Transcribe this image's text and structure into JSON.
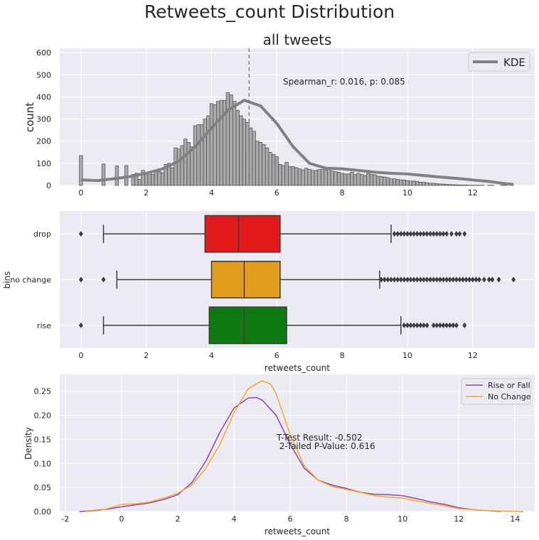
{
  "suptitle": "Retweets_count Distribution",
  "chart_data": [
    {
      "type": "bar",
      "subtype": "histogram_with_kde",
      "title": "all tweets",
      "xlabel": "",
      "ylabel": "count",
      "xlim": [
        -0.65,
        13.9
      ],
      "ylim": [
        0,
        620
      ],
      "xticks": [
        0,
        2,
        4,
        6,
        8,
        10,
        12
      ],
      "yticks": [
        0,
        100,
        200,
        300,
        400,
        500,
        600
      ],
      "grid": true,
      "legend": {
        "entries": [
          "KDE"
        ],
        "placement": "top-right"
      },
      "vline": {
        "x": 5.15,
        "style": "dashed"
      },
      "annotation": "Spearman_r: 0.016, p: 0.085",
      "bar_color": "#a9a9a9",
      "kde_color": "#808080",
      "spike_bins": [
        {
          "x": 0.0,
          "count": 135
        },
        {
          "x": 0.69,
          "count": 97
        },
        {
          "x": 1.1,
          "count": 88
        },
        {
          "x": 1.39,
          "count": 90
        }
      ],
      "bin_range": [
        1.55,
        13.25
      ],
      "bin_width": 0.1,
      "counts": [
        50,
        55,
        28,
        68,
        58,
        55,
        50,
        62,
        62,
        58,
        95,
        100,
        80,
        170,
        165,
        180,
        210,
        195,
        175,
        270,
        275,
        275,
        300,
        315,
        370,
        365,
        380,
        385,
        385,
        420,
        410,
        380,
        340,
        315,
        300,
        285,
        260,
        245,
        200,
        195,
        185,
        170,
        150,
        140,
        130,
        95,
        90,
        105,
        85,
        85,
        80,
        75,
        70,
        78,
        72,
        68,
        68,
        72,
        72,
        70,
        75,
        65,
        62,
        60,
        55,
        52,
        52,
        60,
        50,
        55,
        50,
        45,
        55,
        50,
        48,
        42,
        40,
        38,
        35,
        30,
        30,
        28,
        25,
        25,
        22,
        20,
        20,
        18,
        15,
        14,
        12,
        10,
        10,
        8,
        7,
        6,
        5,
        4,
        3,
        3,
        2,
        2,
        2,
        1,
        1,
        1,
        1,
        1,
        0,
        1,
        1,
        0,
        0,
        1,
        1,
        0,
        1,
        0
      ],
      "kde": {
        "x": [
          0,
          0.5,
          1,
          1.5,
          2,
          2.5,
          3,
          3.5,
          4,
          4.5,
          5,
          5.5,
          6,
          6.5,
          7,
          7.5,
          8,
          8.5,
          9,
          9.5,
          10,
          10.5,
          11,
          11.5,
          12,
          12.5,
          13,
          13.25
        ],
        "y": [
          25,
          22,
          30,
          40,
          55,
          75,
          110,
          175,
          260,
          340,
          385,
          360,
          280,
          175,
          100,
          78,
          75,
          68,
          60,
          55,
          52,
          45,
          38,
          32,
          25,
          18,
          8,
          5
        ]
      }
    },
    {
      "type": "box",
      "title": "",
      "xlabel": "retweets_count",
      "ylabel": "bins",
      "xlim": [
        -0.65,
        13.9
      ],
      "xticks": [
        0,
        2,
        4,
        6,
        8,
        10,
        12
      ],
      "grid": true,
      "categories": [
        "drop",
        "no change",
        "rise"
      ],
      "series": [
        {
          "category": "drop",
          "color": "#e31a1c",
          "whisker_low": 0.69,
          "q1": 3.8,
          "median": 4.83,
          "q3": 6.1,
          "whisker_high": 9.5,
          "outliers": [
            0,
            9.6,
            9.7,
            9.8,
            9.9,
            10.0,
            10.1,
            10.2,
            10.3,
            10.4,
            10.5,
            10.6,
            10.7,
            10.8,
            10.9,
            11.0,
            11.1,
            11.2,
            11.35,
            11.5,
            11.6,
            11.75
          ]
        },
        {
          "category": "no change",
          "color": "#e39d1e",
          "whisker_low": 1.1,
          "q1": 4.0,
          "median": 5.0,
          "q3": 6.1,
          "whisker_high": 9.15,
          "outliers": [
            0,
            0.69,
            9.2,
            9.3,
            9.4,
            9.5,
            9.6,
            9.7,
            9.8,
            9.9,
            10.0,
            10.1,
            10.2,
            10.3,
            10.4,
            10.5,
            10.6,
            10.7,
            10.8,
            10.9,
            11.0,
            11.1,
            11.2,
            11.3,
            11.4,
            11.5,
            11.6,
            11.7,
            11.8,
            11.9,
            12.0,
            12.1,
            12.2,
            12.35,
            12.5,
            12.6,
            12.8,
            13.25
          ]
        },
        {
          "category": "rise",
          "color": "#0f7a0f",
          "whisker_low": 0.69,
          "q1": 3.93,
          "median": 5.0,
          "q3": 6.3,
          "whisker_high": 9.8,
          "outliers": [
            0,
            9.9,
            10.0,
            10.1,
            10.2,
            10.3,
            10.4,
            10.5,
            10.6,
            10.8,
            10.9,
            11.0,
            11.1,
            11.2,
            11.3,
            11.4,
            11.5,
            11.75
          ]
        }
      ]
    },
    {
      "type": "line",
      "subtype": "kde",
      "title": "",
      "xlabel": "retweets_count",
      "ylabel": "Density",
      "xlim": [
        -2.2,
        14.7
      ],
      "ylim": [
        0,
        0.285
      ],
      "xticks": [
        -2,
        0,
        2,
        4,
        6,
        8,
        10,
        12,
        14
      ],
      "yticks": [
        "0.00",
        "0.05",
        "0.10",
        "0.15",
        "0.20",
        "0.25"
      ],
      "grid": true,
      "legend": {
        "entries": [
          "Rise or Fall",
          "No Change"
        ],
        "placement": "top-right"
      },
      "annotation_lines": [
        "T-Test Result: -0.502",
        " 2-Tailed P-Value: 0.616"
      ],
      "series": [
        {
          "name": "Rise or Fall",
          "color": "#8e44ad",
          "x": [
            -1.5,
            -1,
            -0.5,
            0,
            0.5,
            1,
            1.5,
            2,
            2.5,
            3,
            3.5,
            4,
            4.5,
            4.8,
            5,
            5.5,
            6,
            6.5,
            7,
            7.5,
            8,
            8.5,
            9,
            9.5,
            10,
            10.5,
            11,
            11.5,
            12,
            12.5,
            13,
            13.5
          ],
          "y": [
            0,
            0.002,
            0.005,
            0.01,
            0.014,
            0.018,
            0.025,
            0.035,
            0.06,
            0.105,
            0.165,
            0.215,
            0.236,
            0.237,
            0.232,
            0.2,
            0.14,
            0.09,
            0.065,
            0.055,
            0.048,
            0.04,
            0.036,
            0.035,
            0.033,
            0.027,
            0.02,
            0.015,
            0.008,
            0.004,
            0.002,
            0
          ]
        },
        {
          "name": "No Change",
          "color": "#f5a623",
          "x": [
            -1.3,
            -0.8,
            -0.5,
            0,
            0.5,
            1,
            1.5,
            2,
            2.5,
            3,
            3.5,
            4,
            4.5,
            5,
            5.3,
            5.5,
            6,
            6.5,
            7,
            7.5,
            8,
            8.5,
            9,
            9.5,
            10,
            10.5,
            11,
            11.5,
            12,
            12.5,
            13,
            13.5,
            14,
            14.3
          ],
          "y": [
            0,
            0.002,
            0.006,
            0.015,
            0.016,
            0.02,
            0.028,
            0.038,
            0.055,
            0.09,
            0.14,
            0.205,
            0.255,
            0.272,
            0.265,
            0.245,
            0.16,
            0.095,
            0.065,
            0.052,
            0.046,
            0.04,
            0.033,
            0.03,
            0.028,
            0.022,
            0.017,
            0.012,
            0.006,
            0.004,
            0.002,
            0.001,
            0.0005,
            0
          ]
        }
      ]
    }
  ]
}
